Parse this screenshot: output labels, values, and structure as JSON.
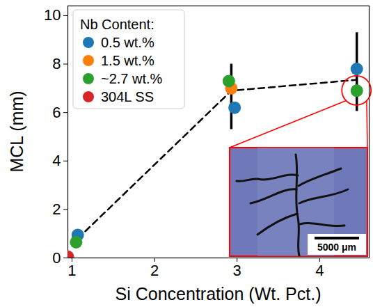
{
  "chart_data": {
    "type": "scatter",
    "x_label": "Si Concentration (Wt. Pct.)",
    "y_label": "MCL (mm)",
    "xlim": [
      0.95,
      4.6
    ],
    "ylim": [
      0,
      10.4
    ],
    "xticks": [
      1,
      2,
      3,
      4
    ],
    "yticks": [
      0,
      2,
      4,
      6,
      8,
      10
    ],
    "legend": "upper left",
    "legend_title": "Nb Content:",
    "series": [
      {
        "name": "0.5 wt.%",
        "color": "#1f77b4",
        "marker": "circle",
        "x": [
          1.07,
          2.97,
          4.45
        ],
        "values": [
          0.95,
          6.2,
          7.8
        ]
      },
      {
        "name": "1.5 wt.%",
        "color": "#ff7f0e",
        "marker": "circle",
        "x": [
          2.93
        ],
        "values": [
          7.0
        ]
      },
      {
        "name": "~2.7 wt.%",
        "color": "#2ca02c",
        "marker": "circle",
        "x": [
          1.05,
          2.9,
          4.45
        ],
        "values": [
          0.65,
          7.3,
          6.9
        ]
      },
      {
        "name": "304L SS",
        "color": "#d62728",
        "marker": "circle",
        "x": [
          0.95
        ],
        "values": [
          0.05
        ]
      }
    ],
    "trend": {
      "x": [
        1.07,
        2.93,
        4.45
      ],
      "values": [
        0.8,
        6.9,
        7.35
      ],
      "error_low": [
        0.6,
        5.3,
        6.05
      ],
      "error_high": [
        1.15,
        8.0,
        9.3
      ],
      "line_style": "dashed",
      "color": "#000000"
    },
    "inset": {
      "scale_label": "5000 μm",
      "highlight_x": 4.45,
      "highlight_y": 6.9,
      "color": "#ff0000"
    }
  }
}
